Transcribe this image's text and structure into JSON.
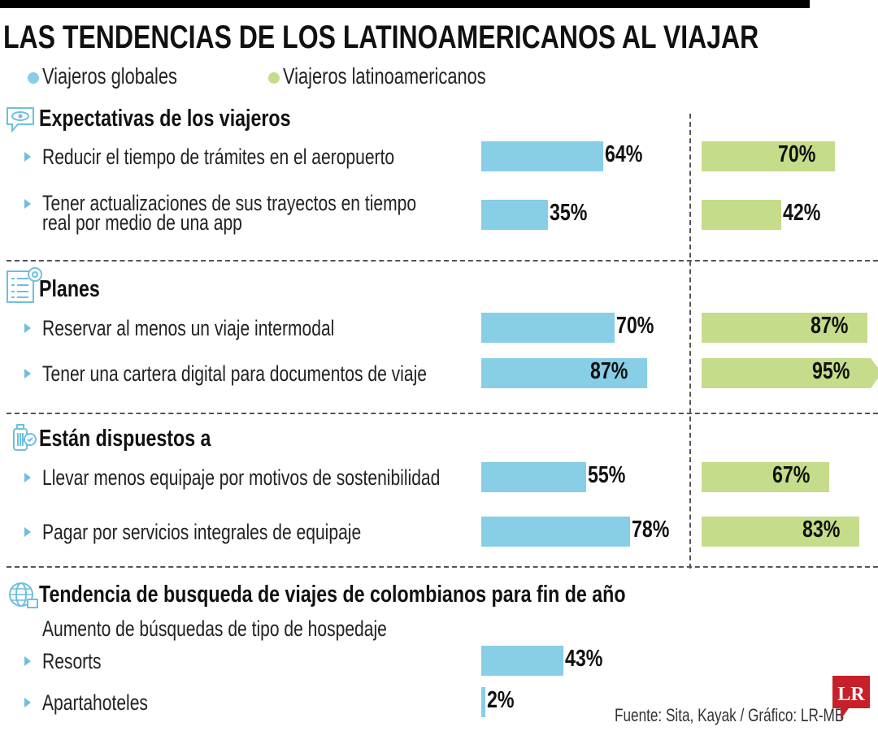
{
  "title": "LAS TENDENCIAS DE LOS LATINOAMERICANOS AL VIAJAR",
  "colors": {
    "global": "#87cee6",
    "latam": "#c5dc8a",
    "accent": "#6fbfdc",
    "logo": "#c8202a"
  },
  "chart_data": {
    "type": "bar",
    "orientation": "horizontal",
    "unit": "%",
    "xlim": [
      0,
      100
    ],
    "legend": [
      {
        "name": "Viajeros globales",
        "color": "#87cee6"
      },
      {
        "name": "Viajeros latinoamericanos",
        "color": "#c5dc8a"
      }
    ],
    "sections": [
      {
        "heading": "Expectativas de los viajeros",
        "icon": "speech-eye-icon",
        "items": [
          {
            "label": [
              "Reducir el tiempo de trámites en el aeropuerto"
            ],
            "global": 64,
            "latam": 70
          },
          {
            "label": [
              "Tener actualizaciones de sus trayectos en tiempo",
              "real por medio de una app"
            ],
            "global": 35,
            "latam": 42
          }
        ]
      },
      {
        "heading": "Planes",
        "icon": "checklist-target-icon",
        "items": [
          {
            "label": [
              "Reservar al menos un viaje intermodal"
            ],
            "global": 70,
            "latam": 87
          },
          {
            "label": [
              "Tener una cartera digital para documentos de viaje"
            ],
            "global": 87,
            "latam": 95
          }
        ]
      },
      {
        "heading": "Están dispuestos a",
        "icon": "luggage-check-icon",
        "items": [
          {
            "label": [
              "Llevar menos equipaje por motivos de sostenibilidad"
            ],
            "global": 55,
            "latam": 67
          },
          {
            "label": [
              "Pagar por servicios integrales de equipaje"
            ],
            "global": 78,
            "latam": 83
          }
        ]
      },
      {
        "heading": "Tendencia de busqueda de viajes de colombianos para fin de año",
        "icon": "globe-icon",
        "subheading": "Aumento de búsquedas de tipo de hospedaje",
        "items": [
          {
            "label": [
              "Resorts"
            ],
            "global": 43
          },
          {
            "label": [
              "Apartahoteles"
            ],
            "global": 2
          }
        ]
      }
    ]
  },
  "source": "Fuente: Sita, Kayak / Gráfico: LR-MB",
  "logo": "LR"
}
